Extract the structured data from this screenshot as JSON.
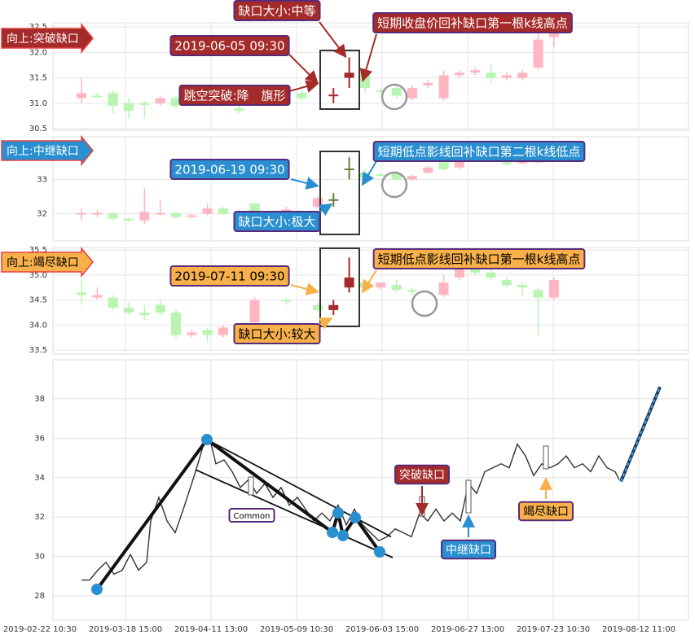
{
  "chart_data": [
    {
      "type": "candlestick",
      "tag": "向上:突破缺口",
      "accent": "#a52a2a",
      "text_color": "#ffffff",
      "up_color": "#ffb6c1",
      "down_color": "#b7f5b0",
      "ylim": [
        30.47,
        32.58
      ],
      "yticks": [
        30.5,
        {
          "value": 31,
          "label": "31.0"
        },
        31.5,
        {
          "value": 32,
          "label": "32.0"
        },
        32.5
      ],
      "annotations": [
        {
          "text": "缺口大小:中等"
        },
        {
          "text": "2019-06-05 09:30"
        },
        {
          "text": "跳空突破:降　旗形"
        },
        {
          "text": "短期收盘价回补缺口第一根k线高点"
        }
      ],
      "candles": [
        {
          "o": 31.1,
          "h": 31.5,
          "l": 31.0,
          "c": 31.2
        },
        {
          "o": 31.15,
          "h": 31.2,
          "l": 31.1,
          "c": 31.13
        },
        {
          "o": 31.2,
          "h": 31.25,
          "l": 30.8,
          "c": 30.95
        },
        {
          "o": 31.0,
          "h": 31.1,
          "l": 30.7,
          "c": 30.85
        },
        {
          "o": 31.0,
          "h": 31.05,
          "l": 30.7,
          "c": 30.98
        },
        {
          "o": 31.0,
          "h": 31.15,
          "l": 30.95,
          "c": 31.1
        },
        {
          "o": 31.1,
          "h": 31.15,
          "l": 30.9,
          "c": 30.95
        },
        null,
        {
          "o": 31.0,
          "h": 31.1,
          "l": 30.95,
          "c": 31.05
        },
        null,
        {
          "o": 30.9,
          "h": 30.95,
          "l": 30.8,
          "c": 30.85
        },
        null,
        {
          "o": 31.0,
          "h": 31.15,
          "l": 30.95,
          "c": 31.1
        },
        null,
        {
          "o": 31.2,
          "h": 31.25,
          "l": 31.05,
          "c": 31.1
        },
        null,
        {
          "o": 31.15,
          "h": 31.3,
          "l": 31.0,
          "c": 31.17,
          "color": "#a52a2a"
        },
        {
          "o": 31.5,
          "h": 31.9,
          "l": 31.3,
          "c": 31.6,
          "color": "#a52a2a"
        },
        {
          "o": 31.6,
          "h": 31.7,
          "l": 31.2,
          "c": 31.3
        },
        {
          "o": 31.25,
          "h": 31.3,
          "l": 31.2,
          "c": 31.22
        },
        {
          "o": 31.3,
          "h": 31.35,
          "l": 31.1,
          "c": 31.15
        },
        {
          "o": 31.1,
          "h": 31.35,
          "l": 31.05,
          "c": 31.3
        },
        {
          "o": 31.35,
          "h": 31.45,
          "l": 31.3,
          "c": 31.4
        },
        {
          "o": 31.1,
          "h": 31.65,
          "l": 31.05,
          "c": 31.55
        },
        {
          "o": 31.55,
          "h": 31.65,
          "l": 31.5,
          "c": 31.6
        },
        {
          "o": 31.6,
          "h": 31.7,
          "l": 31.55,
          "c": 31.65
        },
        {
          "o": 31.6,
          "h": 31.75,
          "l": 31.4,
          "c": 31.5
        },
        {
          "o": 31.5,
          "h": 31.6,
          "l": 31.45,
          "c": 31.55
        },
        {
          "o": 31.5,
          "h": 31.65,
          "l": 31.45,
          "c": 31.6
        },
        {
          "o": 31.7,
          "h": 32.4,
          "l": 31.65,
          "c": 32.25
        },
        {
          "o": 32.3,
          "h": 32.5,
          "l": 32.1,
          "c": 32.4
        }
      ]
    },
    {
      "type": "candlestick",
      "tag": "向上:中继缺口",
      "accent": "#2a8fd0",
      "text_color": "#ffffff",
      "up_color": "#ffb6c1",
      "down_color": "#b7f5b0",
      "ylim": [
        31.2,
        34.25
      ],
      "yticks": [
        32,
        33
      ],
      "annotations": [
        {
          "text": "2019-06-19 09:30"
        },
        {
          "text": "缺口大小:极大"
        },
        {
          "text": "短期低点影线回补缺口第二根k线低点"
        }
      ],
      "candles": [
        {
          "o": 32.0,
          "h": 32.15,
          "l": 31.8,
          "c": 32.02
        },
        {
          "o": 32.0,
          "h": 32.1,
          "l": 31.9,
          "c": 32.02
        },
        {
          "o": 32.0,
          "h": 32.05,
          "l": 31.8,
          "c": 31.85
        },
        {
          "o": 31.85,
          "h": 31.9,
          "l": 31.75,
          "c": 31.8
        },
        {
          "o": 31.8,
          "h": 32.75,
          "l": 31.7,
          "c": 32.05
        },
        {
          "o": 32.0,
          "h": 32.4,
          "l": 31.95,
          "c": 32.02
        },
        {
          "o": 32.0,
          "h": 32.05,
          "l": 31.85,
          "c": 31.9
        },
        {
          "o": 31.9,
          "h": 32.0,
          "l": 31.85,
          "c": 31.95
        },
        {
          "o": 32.0,
          "h": 32.3,
          "l": 31.95,
          "c": 32.15
        },
        {
          "o": 32.15,
          "h": 32.2,
          "l": 31.95,
          "c": 32.0
        },
        {
          "o": 32.0,
          "h": 32.1,
          "l": 31.9,
          "c": 32.02
        },
        {
          "o": 32.3,
          "h": 32.3,
          "l": 31.85,
          "c": 31.9
        },
        null,
        {
          "o": 32.1,
          "h": 32.2,
          "l": 32.0,
          "c": 32.12
        },
        null,
        {
          "o": 32.2,
          "h": 32.5,
          "l": 32.15,
          "c": 32.45
        },
        {
          "o": 32.4,
          "h": 32.6,
          "l": 32.2,
          "c": 32.42,
          "color": "#6b7f3a"
        },
        {
          "o": 33.3,
          "h": 33.65,
          "l": 33.0,
          "c": 33.32,
          "color": "#6b7f3a"
        },
        {
          "o": 33.2,
          "h": 33.3,
          "l": 32.9,
          "c": 33.05
        },
        {
          "o": 33.15,
          "h": 33.2,
          "l": 33.1,
          "c": 33.13
        },
        {
          "o": 33.2,
          "h": 33.25,
          "l": 32.95,
          "c": 33.0
        },
        {
          "o": 33.0,
          "h": 33.15,
          "l": 32.95,
          "c": 33.1
        },
        {
          "o": 33.2,
          "h": 33.4,
          "l": 33.15,
          "c": 33.35
        },
        {
          "o": 33.5,
          "h": 33.6,
          "l": 33.25,
          "c": 33.3
        },
        {
          "o": 33.35,
          "h": 33.65,
          "l": 33.3,
          "c": 33.6
        },
        {
          "o": 33.6,
          "h": 33.7,
          "l": 33.5,
          "c": 33.55
        },
        null,
        {
          "o": 33.5,
          "h": 33.6,
          "l": 33.4,
          "c": 33.45
        },
        {
          "o": 33.5,
          "h": 33.6,
          "l": 33.45,
          "c": 33.52
        },
        {
          "o": 33.5,
          "h": 33.75,
          "l": 33.45,
          "c": 33.7
        },
        {
          "o": 33.8,
          "h": 33.9,
          "l": 33.7,
          "c": 33.82
        }
      ]
    },
    {
      "type": "candlestick",
      "tag": "向上:竭尽缺口",
      "accent": "#f7b04a",
      "text_color": "#000000",
      "up_color": "#ffb6c1",
      "down_color": "#b7f5b0",
      "ylim": [
        33.42,
        35.55
      ],
      "yticks": [
        33.5,
        {
          "value": 34,
          "label": "34.0"
        },
        34.5,
        {
          "value": 35,
          "label": "35.0"
        },
        35.5
      ],
      "annotations": [
        {
          "text": "2019-07-11 09:30"
        },
        {
          "text": "缺口大小:较大"
        },
        {
          "text": "短期低点影线回补缺口第一根k线高点"
        }
      ],
      "candles": [
        {
          "o": 34.65,
          "h": 34.9,
          "l": 34.4,
          "c": 34.6
        },
        {
          "o": 34.55,
          "h": 34.75,
          "l": 34.5,
          "c": 34.6
        },
        {
          "o": 34.55,
          "h": 34.6,
          "l": 34.3,
          "c": 34.35
        },
        {
          "o": 34.35,
          "h": 34.45,
          "l": 34.2,
          "c": 34.25
        },
        {
          "o": 34.25,
          "h": 34.4,
          "l": 34.1,
          "c": 34.2
        },
        {
          "o": 34.4,
          "h": 34.5,
          "l": 34.2,
          "c": 34.25
        },
        {
          "o": 34.25,
          "h": 34.3,
          "l": 33.75,
          "c": 33.8
        },
        {
          "o": 33.8,
          "h": 33.9,
          "l": 33.75,
          "c": 33.85
        },
        {
          "o": 33.9,
          "h": 33.95,
          "l": 33.65,
          "c": 33.8
        },
        {
          "o": 33.8,
          "h": 34.0,
          "l": 33.75,
          "c": 33.95
        },
        null,
        {
          "o": 34.05,
          "h": 34.55,
          "l": 34.0,
          "c": 34.5
        },
        null,
        {
          "o": 34.5,
          "h": 34.55,
          "l": 34.4,
          "c": 34.48
        },
        null,
        {
          "o": 34.4,
          "h": 34.45,
          "l": 34.25,
          "c": 34.3
        },
        {
          "o": 34.3,
          "h": 34.5,
          "l": 34.2,
          "c": 34.4,
          "color": "#a52a2a"
        },
        {
          "o": 34.75,
          "h": 35.35,
          "l": 34.65,
          "c": 34.95,
          "color": "#a52a2a"
        },
        {
          "o": 34.85,
          "h": 34.9,
          "l": 34.7,
          "c": 34.75
        },
        {
          "o": 34.75,
          "h": 34.85,
          "l": 34.7,
          "c": 34.85
        },
        {
          "o": 34.8,
          "h": 34.9,
          "l": 34.65,
          "c": 34.7
        },
        {
          "o": 34.7,
          "h": 34.75,
          "l": 34.6,
          "c": 34.68
        },
        null,
        {
          "o": 34.6,
          "h": 35.0,
          "l": 34.55,
          "c": 34.85
        },
        {
          "o": 34.95,
          "h": 35.3,
          "l": 34.9,
          "c": 35.25
        },
        {
          "o": 35.15,
          "h": 35.25,
          "l": 35.0,
          "c": 35.05
        },
        {
          "o": 35.05,
          "h": 35.1,
          "l": 34.9,
          "c": 34.95
        },
        {
          "o": 34.9,
          "h": 34.95,
          "l": 34.75,
          "c": 34.8
        },
        {
          "o": 34.8,
          "h": 34.85,
          "l": 34.6,
          "c": 34.75
        },
        {
          "o": 34.7,
          "h": 34.75,
          "l": 33.8,
          "c": 34.55
        },
        {
          "o": 34.55,
          "h": 34.95,
          "l": 34.5,
          "c": 34.9
        }
      ]
    },
    {
      "type": "line",
      "color": "#333333",
      "xlim": [
        3.2,
        159.2
      ],
      "ylim": [
        26.76,
        39.98
      ],
      "xticks": [
        {
          "value": 0,
          "label": "2019-02-22 10:30"
        },
        {
          "value": 21,
          "label": "2019-03-18 15:00"
        },
        {
          "value": 42,
          "label": "2019-04-11 13:00"
        },
        {
          "value": 63,
          "label": "2019-05-09 10:30"
        },
        {
          "value": 84,
          "label": "2019-06-03 15:00"
        },
        {
          "value": 105,
          "label": "2019-06-27 13:00"
        },
        {
          "value": 126,
          "label": "2019-07-23 10:30"
        },
        {
          "value": 147,
          "label": "2019-08-12 11:00"
        }
      ],
      "yticks": [
        28,
        30,
        32,
        34,
        36,
        38
      ],
      "x": [
        10.2,
        12.2,
        14.2,
        16.2,
        18.2,
        20.2,
        22.2,
        24.2,
        26.2,
        27.2,
        29.2,
        31.2,
        33.2,
        35.2,
        38.2,
        40.2,
        41.8,
        43.2,
        45.2,
        47.2,
        49.2,
        51.2,
        53.2,
        55.2,
        57.2,
        59.2,
        61.2,
        63.2,
        65.2,
        67.2,
        69.2,
        71.2,
        73.2,
        75.2,
        77.2,
        79.2,
        81.2,
        83.2,
        85.2,
        87.2,
        89.2,
        91.2,
        93.2,
        95.2,
        97.2,
        99.2,
        101.2,
        103.2,
        105.2,
        107.2,
        109.2,
        111.2,
        113.2,
        115.2,
        117.2,
        119.2,
        121.2,
        123.2,
        125.2,
        127.2,
        129.2,
        131.2,
        133.2,
        135.2,
        137.2,
        139.2,
        141.2,
        142.2
      ],
      "values": [
        28.8,
        28.8,
        29.3,
        29.7,
        29.1,
        29.3,
        30.1,
        29.3,
        29.7,
        31.8,
        33.0,
        31.8,
        31.2,
        32.4,
        34.3,
        35.7,
        35.9,
        34.7,
        34.9,
        34.3,
        33.5,
        33.9,
        33.2,
        33.7,
        33.0,
        33.5,
        32.6,
        33.0,
        32.4,
        31.8,
        32.2,
        31.8,
        32.6,
        31.6,
        32.4,
        31.6,
        31.2,
        30.8,
        31.0,
        31.4,
        31.2,
        31.0,
        32.2,
        31.8,
        32.4,
        31.8,
        32.2,
        31.8,
        33.7,
        33.2,
        34.3,
        34.5,
        34.7,
        34.5,
        35.7,
        35.1,
        34.1,
        34.7,
        34.5,
        34.7,
        35.1,
        34.5,
        34.7,
        34.3,
        35.1,
        34.5,
        34.3,
        33.9
      ],
      "projection": {
        "color": "#4aa3df",
        "x": [
          142.6,
          152.2
        ],
        "values": [
          33.8,
          38.6
        ]
      },
      "pattern": {
        "color": "#111111",
        "point_color": "#2a8fd0",
        "x": [
          14,
          41,
          71.8,
          73.2,
          74.4,
          77.4,
          83.4
        ],
        "values": [
          28.33,
          35.93,
          31.22,
          32.21,
          31.06,
          31.97,
          30.23
        ]
      },
      "trend_lines": [
        {
          "x": [
            41,
            86.2
          ],
          "values": [
            35.93,
            31.0
          ]
        },
        {
          "x": [
            38.2,
            86.6
          ],
          "values": [
            34.4,
            29.94
          ]
        }
      ],
      "annotations": [
        {
          "text": "Common",
          "color": "#ffffff",
          "text_color": "#000000"
        },
        {
          "text": "突破缺口",
          "color": "#a52a2a",
          "text_color": "#ffffff"
        },
        {
          "text": "中继缺口",
          "color": "#2a8fd0",
          "text_color": "#ffffff"
        },
        {
          "text": "竭尽缺口",
          "color": "#f7b04a",
          "text_color": "#000000"
        }
      ]
    }
  ]
}
